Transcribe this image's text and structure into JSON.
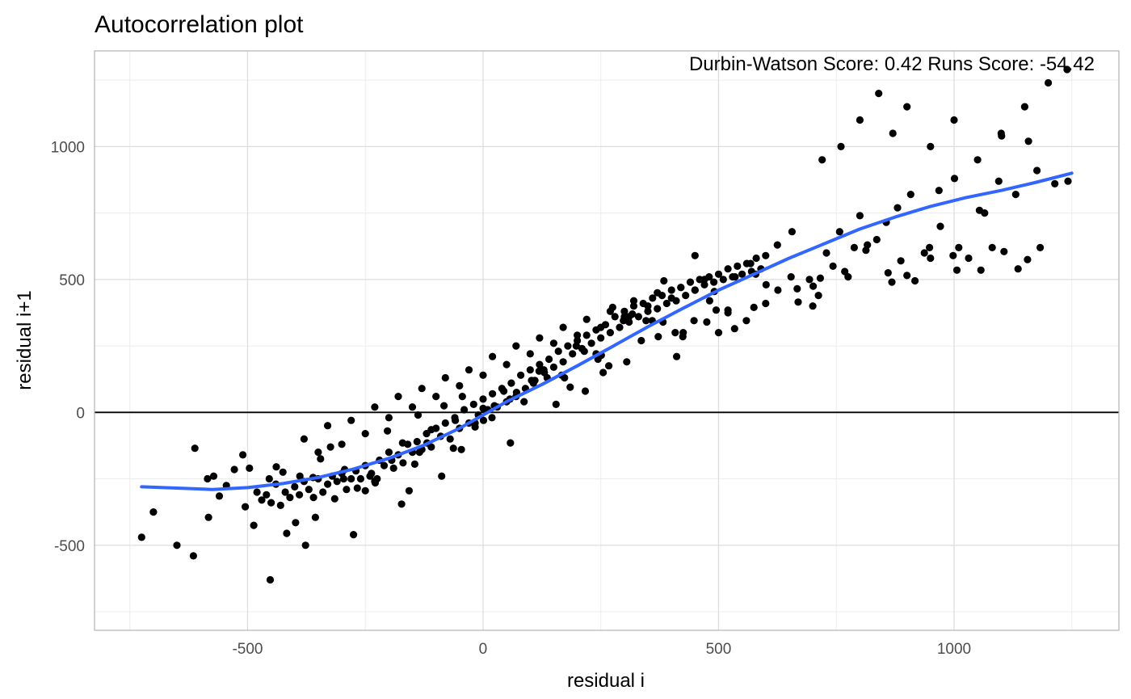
{
  "chart_data": {
    "type": "scatter",
    "title": "Autocorrelation plot",
    "xlabel": "residual i",
    "ylabel": "residual i+1",
    "annotation": "Durbin-Watson Score: 0.42  Runs Score: -54.42",
    "xlim": [
      -825,
      1350
    ],
    "ylim": [
      -820,
      1360
    ],
    "x_ticks": [
      -500,
      0,
      500,
      1000
    ],
    "y_ticks": [
      -500,
      0,
      500,
      1000
    ],
    "x_tick_labels": [
      "-500",
      "0",
      "500",
      "1000"
    ],
    "y_tick_labels": [
      "-500",
      "0",
      "500",
      "1000"
    ],
    "grid": true,
    "reference_line": {
      "y": 0,
      "color": "#000000"
    },
    "point_color": "#000000",
    "trend_color": "#3366FF",
    "trend_line": {
      "x": [
        -725,
        -650,
        -575,
        -500,
        -425,
        -350,
        -275,
        -200,
        -125,
        -50,
        0,
        50,
        125,
        200,
        275,
        350,
        425,
        500,
        575,
        650,
        725,
        800,
        875,
        950,
        1025,
        1100,
        1175,
        1250
      ],
      "y": [
        -280,
        -285,
        -290,
        -283,
        -268,
        -245,
        -213,
        -173,
        -123,
        -60,
        -10,
        40,
        105,
        175,
        248,
        322,
        392,
        460,
        520,
        580,
        635,
        690,
        735,
        775,
        808,
        835,
        866,
        900
      ]
    },
    "points_x": [
      -725,
      -700,
      -650,
      -615,
      -583,
      -560,
      -545,
      -505,
      -487,
      -452,
      -417,
      -398,
      -377,
      -356,
      -315,
      -296,
      -275,
      -250,
      -229,
      -194,
      -173,
      -157,
      -135,
      -119,
      -88,
      -63,
      -46,
      -17,
      0,
      19,
      44,
      58,
      87,
      107,
      129,
      155,
      173,
      198,
      217,
      244,
      255,
      275,
      298,
      317,
      346,
      359,
      384,
      408,
      425,
      450,
      475,
      491,
      520,
      535,
      568,
      579,
      600,
      625,
      656,
      667,
      693,
      716,
      729,
      757,
      788,
      800,
      813,
      856,
      868,
      880,
      908,
      937,
      950,
      968,
      1001,
      1010,
      1054,
      1065,
      1095,
      1101,
      1131,
      1158,
      1176,
      1214,
      1242,
      -612,
      -585,
      -572,
      -528,
      -510,
      -496,
      -454,
      -439,
      -425,
      -389,
      -361,
      -345,
      -324,
      -294,
      -267,
      -237,
      -225,
      -203,
      -171,
      -145,
      -138,
      -110,
      -83,
      -59,
      -44,
      -17,
      1,
      24,
      57,
      71,
      103,
      119,
      136,
      167,
      185,
      215,
      240,
      251,
      267,
      305,
      310,
      336,
      372,
      382,
      411,
      424,
      448,
      481,
      495,
      520,
      534,
      559,
      575,
      601,
      626,
      654,
      669,
      701,
      712,
      743,
      768,
      775,
      816,
      836,
      860,
      887,
      900,
      917,
      948,
      971,
      998,
      1006,
      1031,
      1057,
      1081,
      1106,
      1136,
      1156,
      1183,
      -480,
      -470,
      -460,
      -450,
      -440,
      -430,
      -420,
      -410,
      -400,
      -390,
      -380,
      -370,
      -360,
      -350,
      -340,
      -330,
      -320,
      -310,
      -300,
      -290,
      -280,
      -270,
      -260,
      -250,
      -240,
      -230,
      -220,
      -210,
      -200,
      -190,
      -180,
      -170,
      -160,
      -150,
      -140,
      -130,
      -120,
      -110,
      -100,
      -90,
      -80,
      -70,
      -60,
      -50,
      -40,
      -30,
      -20,
      -10,
      0,
      10,
      20,
      30,
      40,
      50,
      60,
      70,
      80,
      90,
      100,
      110,
      120,
      130,
      140,
      150,
      160,
      170,
      180,
      190,
      200,
      210,
      220,
      230,
      240,
      250,
      260,
      270,
      280,
      290,
      300,
      310,
      320,
      330,
      340,
      350,
      360,
      370,
      380,
      390,
      400,
      410,
      420,
      430,
      440,
      450,
      460,
      470,
      480,
      490,
      500,
      510,
      520,
      530,
      540,
      550,
      560,
      570,
      580,
      590,
      600,
      -380,
      -350,
      -330,
      -300,
      -280,
      -250,
      -230,
      -200,
      -180,
      -150,
      -130,
      -100,
      -80,
      -50,
      -30,
      0,
      20,
      50,
      70,
      100,
      120,
      150,
      170,
      200,
      220,
      250,
      270,
      300,
      320,
      350,
      370,
      400,
      420,
      450,
      470,
      500,
      700,
      720,
      760,
      800,
      840,
      870,
      900,
      950,
      1000,
      1050,
      1100,
      1150,
      1200,
      1240
    ],
    "points_y": [
      -470,
      -375,
      -500,
      -540,
      -395,
      -315,
      -275,
      -355,
      -425,
      -630,
      -455,
      -415,
      -500,
      -395,
      -325,
      -250,
      -460,
      -295,
      -265,
      -180,
      -345,
      -295,
      -150,
      -115,
      -240,
      -135,
      -140,
      -40,
      15,
      -20,
      80,
      -115,
      40,
      110,
      160,
      30,
      130,
      250,
      80,
      200,
      150,
      395,
      345,
      370,
      345,
      345,
      495,
      300,
      300,
      590,
      340,
      455,
      375,
      510,
      560,
      520,
      410,
      630,
      680,
      465,
      500,
      505,
      600,
      680,
      620,
      740,
      610,
      715,
      490,
      770,
      820,
      600,
      580,
      835,
      880,
      620,
      760,
      750,
      870,
      1040,
      820,
      1020,
      910,
      860,
      870,
      -135,
      -250,
      -240,
      -215,
      -160,
      -210,
      -250,
      -205,
      -225,
      -240,
      -245,
      -175,
      -130,
      -215,
      -285,
      -230,
      -250,
      -70,
      -115,
      -195,
      -10,
      -65,
      25,
      -30,
      60,
      -55,
      -30,
      25,
      50,
      75,
      120,
      155,
      130,
      140,
      95,
      230,
      220,
      215,
      175,
      190,
      360,
      270,
      285,
      340,
      210,
      285,
      345,
      420,
      385,
      385,
      315,
      345,
      395,
      480,
      460,
      510,
      415,
      475,
      440,
      550,
      530,
      510,
      630,
      650,
      525,
      570,
      515,
      495,
      620,
      700,
      590,
      535,
      580,
      535,
      620,
      605,
      540,
      575,
      620,
      -300,
      -330,
      -310,
      -340,
      -270,
      -350,
      -300,
      -320,
      -280,
      -310,
      -260,
      -290,
      -320,
      -250,
      -300,
      -270,
      -240,
      -260,
      -230,
      -290,
      -250,
      -220,
      -250,
      -200,
      -240,
      -260,
      -180,
      -200,
      -150,
      -210,
      -160,
      -190,
      -120,
      -150,
      -110,
      -140,
      -80,
      -130,
      -60,
      -90,
      -40,
      -100,
      -20,
      -60,
      10,
      -40,
      30,
      -10,
      50,
      10,
      70,
      20,
      90,
      40,
      110,
      60,
      140,
      90,
      160,
      120,
      180,
      150,
      200,
      170,
      230,
      190,
      250,
      220,
      270,
      240,
      290,
      260,
      310,
      280,
      330,
      300,
      360,
      320,
      380,
      340,
      400,
      360,
      410,
      380,
      430,
      390,
      440,
      410,
      460,
      420,
      470,
      440,
      490,
      460,
      500,
      480,
      510,
      490,
      520,
      500,
      540,
      510,
      550,
      520,
      560,
      530,
      580,
      540,
      590,
      -100,
      -150,
      -50,
      -120,
      -30,
      -80,
      20,
      -20,
      60,
      20,
      90,
      60,
      130,
      100,
      160,
      140,
      210,
      180,
      250,
      220,
      280,
      260,
      320,
      290,
      350,
      320,
      380,
      360,
      420,
      400,
      450,
      430,
      470,
      460,
      500,
      300,
      400,
      950,
      1000,
      1100,
      1200,
      1050,
      1150,
      1000,
      1100,
      950,
      1050,
      1150,
      1240,
      1290
    ]
  }
}
